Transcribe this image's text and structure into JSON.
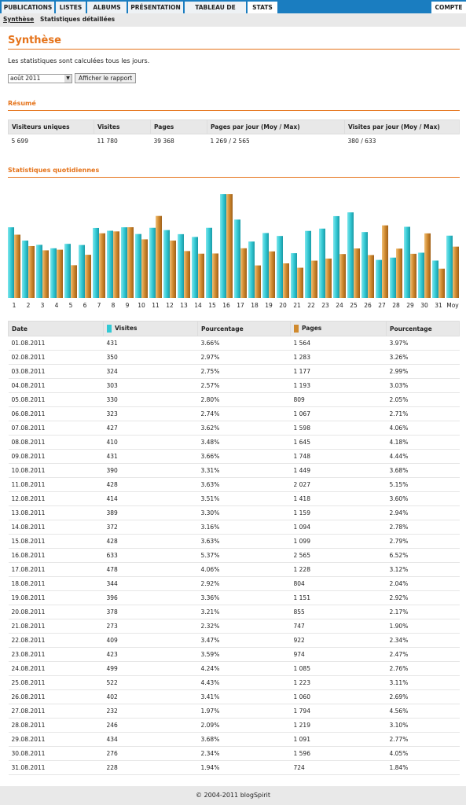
{
  "nav": {
    "tabs": [
      "PUBLICATIONS",
      "LISTES",
      "ALBUMS",
      "PRÉSENTATION",
      "TABLEAU DE BORD",
      "STATS"
    ],
    "account": "COMPTE"
  },
  "subnav": [
    "Synthèse",
    "Statistiques détaillées"
  ],
  "page_title": "Synthèse",
  "intro": "Les statistiques sont calculées tous les jours.",
  "month_select": "août 2011",
  "button": "Afficher le rapport",
  "summary": {
    "title": "Résumé",
    "headers": [
      "Visiteurs uniques",
      "Visites",
      "Pages",
      "Pages par jour (Moy / Max)",
      "Visites par jour (Moy / Max)"
    ],
    "values": [
      "5 699",
      "11 780",
      "39 368",
      "1 269 / 2 565",
      "380 / 633"
    ]
  },
  "daily": {
    "title": "Statistiques quotidiennes",
    "chart": {
      "categories": [
        "1",
        "2",
        "3",
        "4",
        "5",
        "6",
        "7",
        "8",
        "9",
        "10",
        "11",
        "12",
        "13",
        "14",
        "15",
        "16",
        "17",
        "18",
        "19",
        "20",
        "21",
        "22",
        "23",
        "24",
        "25",
        "26",
        "27",
        "28",
        "29",
        "30",
        "31",
        "Moy"
      ],
      "series": [
        {
          "name": "Visites",
          "color": "#33c9d4",
          "values": [
            431,
            350,
            324,
            303,
            330,
            323,
            427,
            410,
            431,
            390,
            428,
            414,
            389,
            372,
            428,
            633,
            478,
            344,
            396,
            378,
            273,
            409,
            423,
            499,
            522,
            402,
            232,
            246,
            434,
            276,
            228,
            380
          ]
        },
        {
          "name": "Pages",
          "color": "#d08a2e",
          "values": [
            1564,
            1283,
            1177,
            1193,
            809,
            1067,
            1598,
            1645,
            1748,
            1449,
            2027,
            1418,
            1159,
            1094,
            1099,
            2565,
            1228,
            804,
            1151,
            855,
            747,
            922,
            974,
            1085,
            1223,
            1060,
            1794,
            1219,
            1091,
            1596,
            724,
            1269
          ]
        }
      ]
    },
    "table": {
      "headers": [
        "Date",
        "Visites",
        "Pourcentage",
        "Pages",
        "Pourcentage"
      ],
      "rows": [
        [
          "01.08.2011",
          "431",
          "3.66%",
          "1 564",
          "3.97%"
        ],
        [
          "02.08.2011",
          "350",
          "2.97%",
          "1 283",
          "3.26%"
        ],
        [
          "03.08.2011",
          "324",
          "2.75%",
          "1 177",
          "2.99%"
        ],
        [
          "04.08.2011",
          "303",
          "2.57%",
          "1 193",
          "3.03%"
        ],
        [
          "05.08.2011",
          "330",
          "2.80%",
          "809",
          "2.05%"
        ],
        [
          "06.08.2011",
          "323",
          "2.74%",
          "1 067",
          "2.71%"
        ],
        [
          "07.08.2011",
          "427",
          "3.62%",
          "1 598",
          "4.06%"
        ],
        [
          "08.08.2011",
          "410",
          "3.48%",
          "1 645",
          "4.18%"
        ],
        [
          "09.08.2011",
          "431",
          "3.66%",
          "1 748",
          "4.44%"
        ],
        [
          "10.08.2011",
          "390",
          "3.31%",
          "1 449",
          "3.68%"
        ],
        [
          "11.08.2011",
          "428",
          "3.63%",
          "2 027",
          "5.15%"
        ],
        [
          "12.08.2011",
          "414",
          "3.51%",
          "1 418",
          "3.60%"
        ],
        [
          "13.08.2011",
          "389",
          "3.30%",
          "1 159",
          "2.94%"
        ],
        [
          "14.08.2011",
          "372",
          "3.16%",
          "1 094",
          "2.78%"
        ],
        [
          "15.08.2011",
          "428",
          "3.63%",
          "1 099",
          "2.79%"
        ],
        [
          "16.08.2011",
          "633",
          "5.37%",
          "2 565",
          "6.52%"
        ],
        [
          "17.08.2011",
          "478",
          "4.06%",
          "1 228",
          "3.12%"
        ],
        [
          "18.08.2011",
          "344",
          "2.92%",
          "804",
          "2.04%"
        ],
        [
          "19.08.2011",
          "396",
          "3.36%",
          "1 151",
          "2.92%"
        ],
        [
          "20.08.2011",
          "378",
          "3.21%",
          "855",
          "2.17%"
        ],
        [
          "21.08.2011",
          "273",
          "2.32%",
          "747",
          "1.90%"
        ],
        [
          "22.08.2011",
          "409",
          "3.47%",
          "922",
          "2.34%"
        ],
        [
          "23.08.2011",
          "423",
          "3.59%",
          "974",
          "2.47%"
        ],
        [
          "24.08.2011",
          "499",
          "4.24%",
          "1 085",
          "2.76%"
        ],
        [
          "25.08.2011",
          "522",
          "4.43%",
          "1 223",
          "3.11%"
        ],
        [
          "26.08.2011",
          "402",
          "3.41%",
          "1 060",
          "2.69%"
        ],
        [
          "27.08.2011",
          "232",
          "1.97%",
          "1 794",
          "4.56%"
        ],
        [
          "28.08.2011",
          "246",
          "2.09%",
          "1 219",
          "3.10%"
        ],
        [
          "29.08.2011",
          "434",
          "3.68%",
          "1 091",
          "2.77%"
        ],
        [
          "30.08.2011",
          "276",
          "2.34%",
          "1 596",
          "4.05%"
        ],
        [
          "31.08.2011",
          "228",
          "1.94%",
          "724",
          "1.84%"
        ]
      ]
    }
  },
  "footer": "© 2004-2011 blogSpirit"
}
